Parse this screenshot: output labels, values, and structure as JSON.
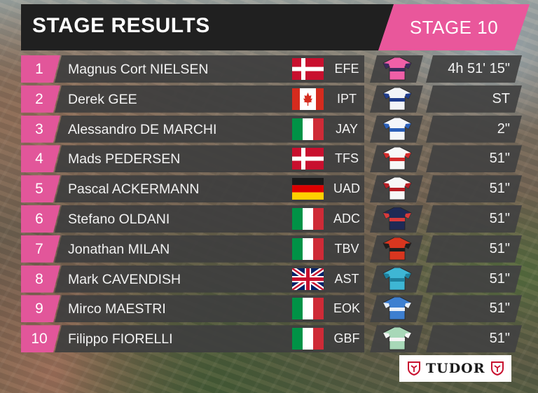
{
  "header": {
    "title": "STAGE RESULTS",
    "stage": "STAGE 10"
  },
  "colors": {
    "accent_pink": "#e9579b",
    "header_dark": "#202020",
    "row_dark": "#3e3e3e"
  },
  "results": [
    {
      "pos": "1",
      "name": "Magnus Cort NIELSEN",
      "flag": "denmark-flag-icon",
      "team": "EFE",
      "jersey": "ef-education-jersey-icon",
      "time": "4h 51' 15\""
    },
    {
      "pos": "2",
      "name": "Derek GEE",
      "flag": "canada-flag-icon",
      "team": "IPT",
      "jersey": "israel-premier-tech-jersey-icon",
      "time": "ST"
    },
    {
      "pos": "3",
      "name": "Alessandro DE MARCHI",
      "flag": "italy-flag-icon",
      "team": "JAY",
      "jersey": "jayco-alula-jersey-icon",
      "time": "2\""
    },
    {
      "pos": "4",
      "name": "Mads PEDERSEN",
      "flag": "denmark-flag-icon",
      "team": "TFS",
      "jersey": "trek-segafredo-jersey-icon",
      "time": "51\""
    },
    {
      "pos": "5",
      "name": "Pascal ACKERMANN",
      "flag": "germany-flag-icon",
      "team": "UAD",
      "jersey": "uae-team-emirates-jersey-icon",
      "time": "51\""
    },
    {
      "pos": "6",
      "name": "Stefano OLDANI",
      "flag": "italy-flag-icon",
      "team": "ADC",
      "jersey": "alpecin-deceuninck-jersey-icon",
      "time": "51\""
    },
    {
      "pos": "7",
      "name": "Jonathan MILAN",
      "flag": "italy-flag-icon",
      "team": "TBV",
      "jersey": "bahrain-victorious-jersey-icon",
      "time": "51\""
    },
    {
      "pos": "8",
      "name": "Mark CAVENDISH",
      "flag": "united-kingdom-flag-icon",
      "team": "AST",
      "jersey": "astana-qazaqstan-jersey-icon",
      "time": "51\""
    },
    {
      "pos": "9",
      "name": "Mirco MAESTRI",
      "flag": "italy-flag-icon",
      "team": "EOK",
      "jersey": "eolo-kometa-jersey-icon",
      "time": "51\""
    },
    {
      "pos": "10",
      "name": "Filippo FIORELLI",
      "flag": "italy-flag-icon",
      "team": "GBF",
      "jersey": "green-project-bardiani-jersey-icon",
      "time": "51\""
    }
  ],
  "sponsor": {
    "name": "TUDOR",
    "logo_icon": "tudor-shield-icon"
  }
}
